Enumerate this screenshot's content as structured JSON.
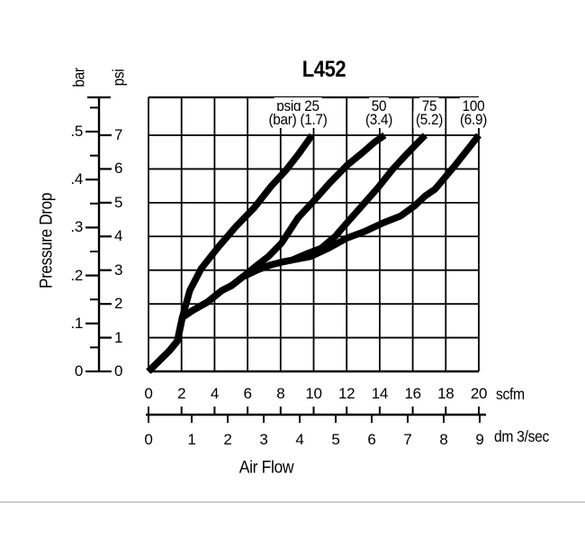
{
  "title": "L452",
  "y_axis": {
    "label": "Pressure Drop",
    "primary_unit": "bar",
    "secondary_unit": "psi",
    "bar_ticks": [
      "0",
      ".1",
      ".2",
      ".3",
      ".4",
      ".5"
    ],
    "psi_ticks": [
      "0",
      "1",
      "2",
      "3",
      "4",
      "5",
      "6",
      "7"
    ]
  },
  "x_axis": {
    "label": "Air Flow",
    "primary_unit": "scfm",
    "secondary_unit": "dm 3/sec",
    "scfm_ticks": [
      "0",
      "2",
      "4",
      "6",
      "8",
      "10",
      "12",
      "14",
      "16",
      "18",
      "20"
    ],
    "dm_ticks": [
      "0",
      "1",
      "2",
      "3",
      "4",
      "5",
      "6",
      "7",
      "8",
      "9"
    ]
  },
  "curve_labels": [
    {
      "line1": "psig 25",
      "line2": "(bar) (1.7)"
    },
    {
      "line1": "50",
      "line2": "(3.4)"
    },
    {
      "line1": "75",
      "line2": "(5.2)"
    },
    {
      "line1": "100",
      "line2": "(6.9)"
    }
  ],
  "colors": {
    "ink": "#000000",
    "separator": "#cdcdcd",
    "background": "#ffffff"
  },
  "chart_data": {
    "type": "line",
    "title": "L452",
    "xlabel": "Air Flow",
    "ylabel": "Pressure Drop",
    "x_units": [
      "scfm",
      "dm 3/sec"
    ],
    "y_units": [
      "bar",
      "psi"
    ],
    "x_range_scfm": [
      0,
      20
    ],
    "x_range_dm3_sec": [
      0,
      9
    ],
    "y_range_psi": [
      0,
      7
    ],
    "y_range_bar": [
      0,
      0.5
    ],
    "grid": true,
    "legend_position": "labels-above-curves",
    "series": [
      {
        "id": "25",
        "name": "psig 25 (bar 1.7)",
        "points_scfm_psi": [
          [
            0,
            0
          ],
          [
            1.25,
            0.6
          ],
          [
            1.75,
            0.9
          ],
          [
            2.05,
            1.6
          ],
          [
            2.5,
            2.4
          ],
          [
            3.2,
            3.05
          ],
          [
            4.25,
            3.7
          ],
          [
            5.3,
            4.3
          ],
          [
            6.4,
            4.85
          ],
          [
            7.45,
            5.5
          ],
          [
            8.3,
            5.95
          ],
          [
            9.1,
            6.45
          ],
          [
            9.9,
            7.0
          ]
        ]
      },
      {
        "id": "50",
        "name": "psig 50 (bar 3.4)",
        "points_scfm_psi": [
          [
            0,
            0
          ],
          [
            1.25,
            0.6
          ],
          [
            1.75,
            0.9
          ],
          [
            2.05,
            1.6
          ],
          [
            2.65,
            1.8
          ],
          [
            3.55,
            2.05
          ],
          [
            4.45,
            2.4
          ],
          [
            5.05,
            2.55
          ],
          [
            5.7,
            2.8
          ],
          [
            6.45,
            3.1
          ],
          [
            7.25,
            3.4
          ],
          [
            8.05,
            3.8
          ],
          [
            9.05,
            4.55
          ],
          [
            10.0,
            5.05
          ],
          [
            11.0,
            5.6
          ],
          [
            12.0,
            6.1
          ],
          [
            13.0,
            6.5
          ],
          [
            13.7,
            6.8
          ],
          [
            14.3,
            7.0
          ]
        ]
      },
      {
        "id": "75",
        "name": "psig 75 (bar 5.2)",
        "points_scfm_psi": [
          [
            0,
            0
          ],
          [
            1.25,
            0.6
          ],
          [
            1.75,
            0.9
          ],
          [
            2.05,
            1.6
          ],
          [
            2.65,
            1.8
          ],
          [
            3.55,
            2.05
          ],
          [
            4.45,
            2.4
          ],
          [
            5.05,
            2.55
          ],
          [
            5.7,
            2.8
          ],
          [
            6.55,
            3.0
          ],
          [
            7.35,
            3.15
          ],
          [
            8.15,
            3.25
          ],
          [
            8.7,
            3.3
          ],
          [
            9.65,
            3.5
          ],
          [
            10.45,
            3.65
          ],
          [
            11.3,
            4.0
          ],
          [
            12.1,
            4.45
          ],
          [
            13.0,
            4.95
          ],
          [
            13.9,
            5.45
          ],
          [
            14.8,
            6.0
          ],
          [
            15.65,
            6.45
          ],
          [
            16.25,
            6.75
          ],
          [
            16.75,
            7.0
          ]
        ]
      },
      {
        "id": "100",
        "name": "psig 100 (bar 6.9)",
        "points_scfm_psi": [
          [
            0,
            0
          ],
          [
            1.25,
            0.6
          ],
          [
            1.75,
            0.9
          ],
          [
            2.05,
            1.6
          ],
          [
            2.65,
            1.8
          ],
          [
            3.55,
            2.05
          ],
          [
            4.45,
            2.4
          ],
          [
            5.05,
            2.55
          ],
          [
            5.7,
            2.8
          ],
          [
            6.55,
            3.0
          ],
          [
            7.35,
            3.15
          ],
          [
            8.15,
            3.25
          ],
          [
            8.7,
            3.3
          ],
          [
            9.8,
            3.4
          ],
          [
            10.9,
            3.65
          ],
          [
            12.0,
            3.95
          ],
          [
            13.1,
            4.15
          ],
          [
            14.2,
            4.4
          ],
          [
            15.25,
            4.6
          ],
          [
            16.1,
            4.9
          ],
          [
            16.75,
            5.2
          ],
          [
            17.35,
            5.4
          ],
          [
            17.95,
            5.75
          ],
          [
            18.55,
            6.1
          ],
          [
            19.2,
            6.5
          ],
          [
            19.6,
            6.75
          ],
          [
            20.0,
            7.0
          ]
        ]
      }
    ]
  }
}
